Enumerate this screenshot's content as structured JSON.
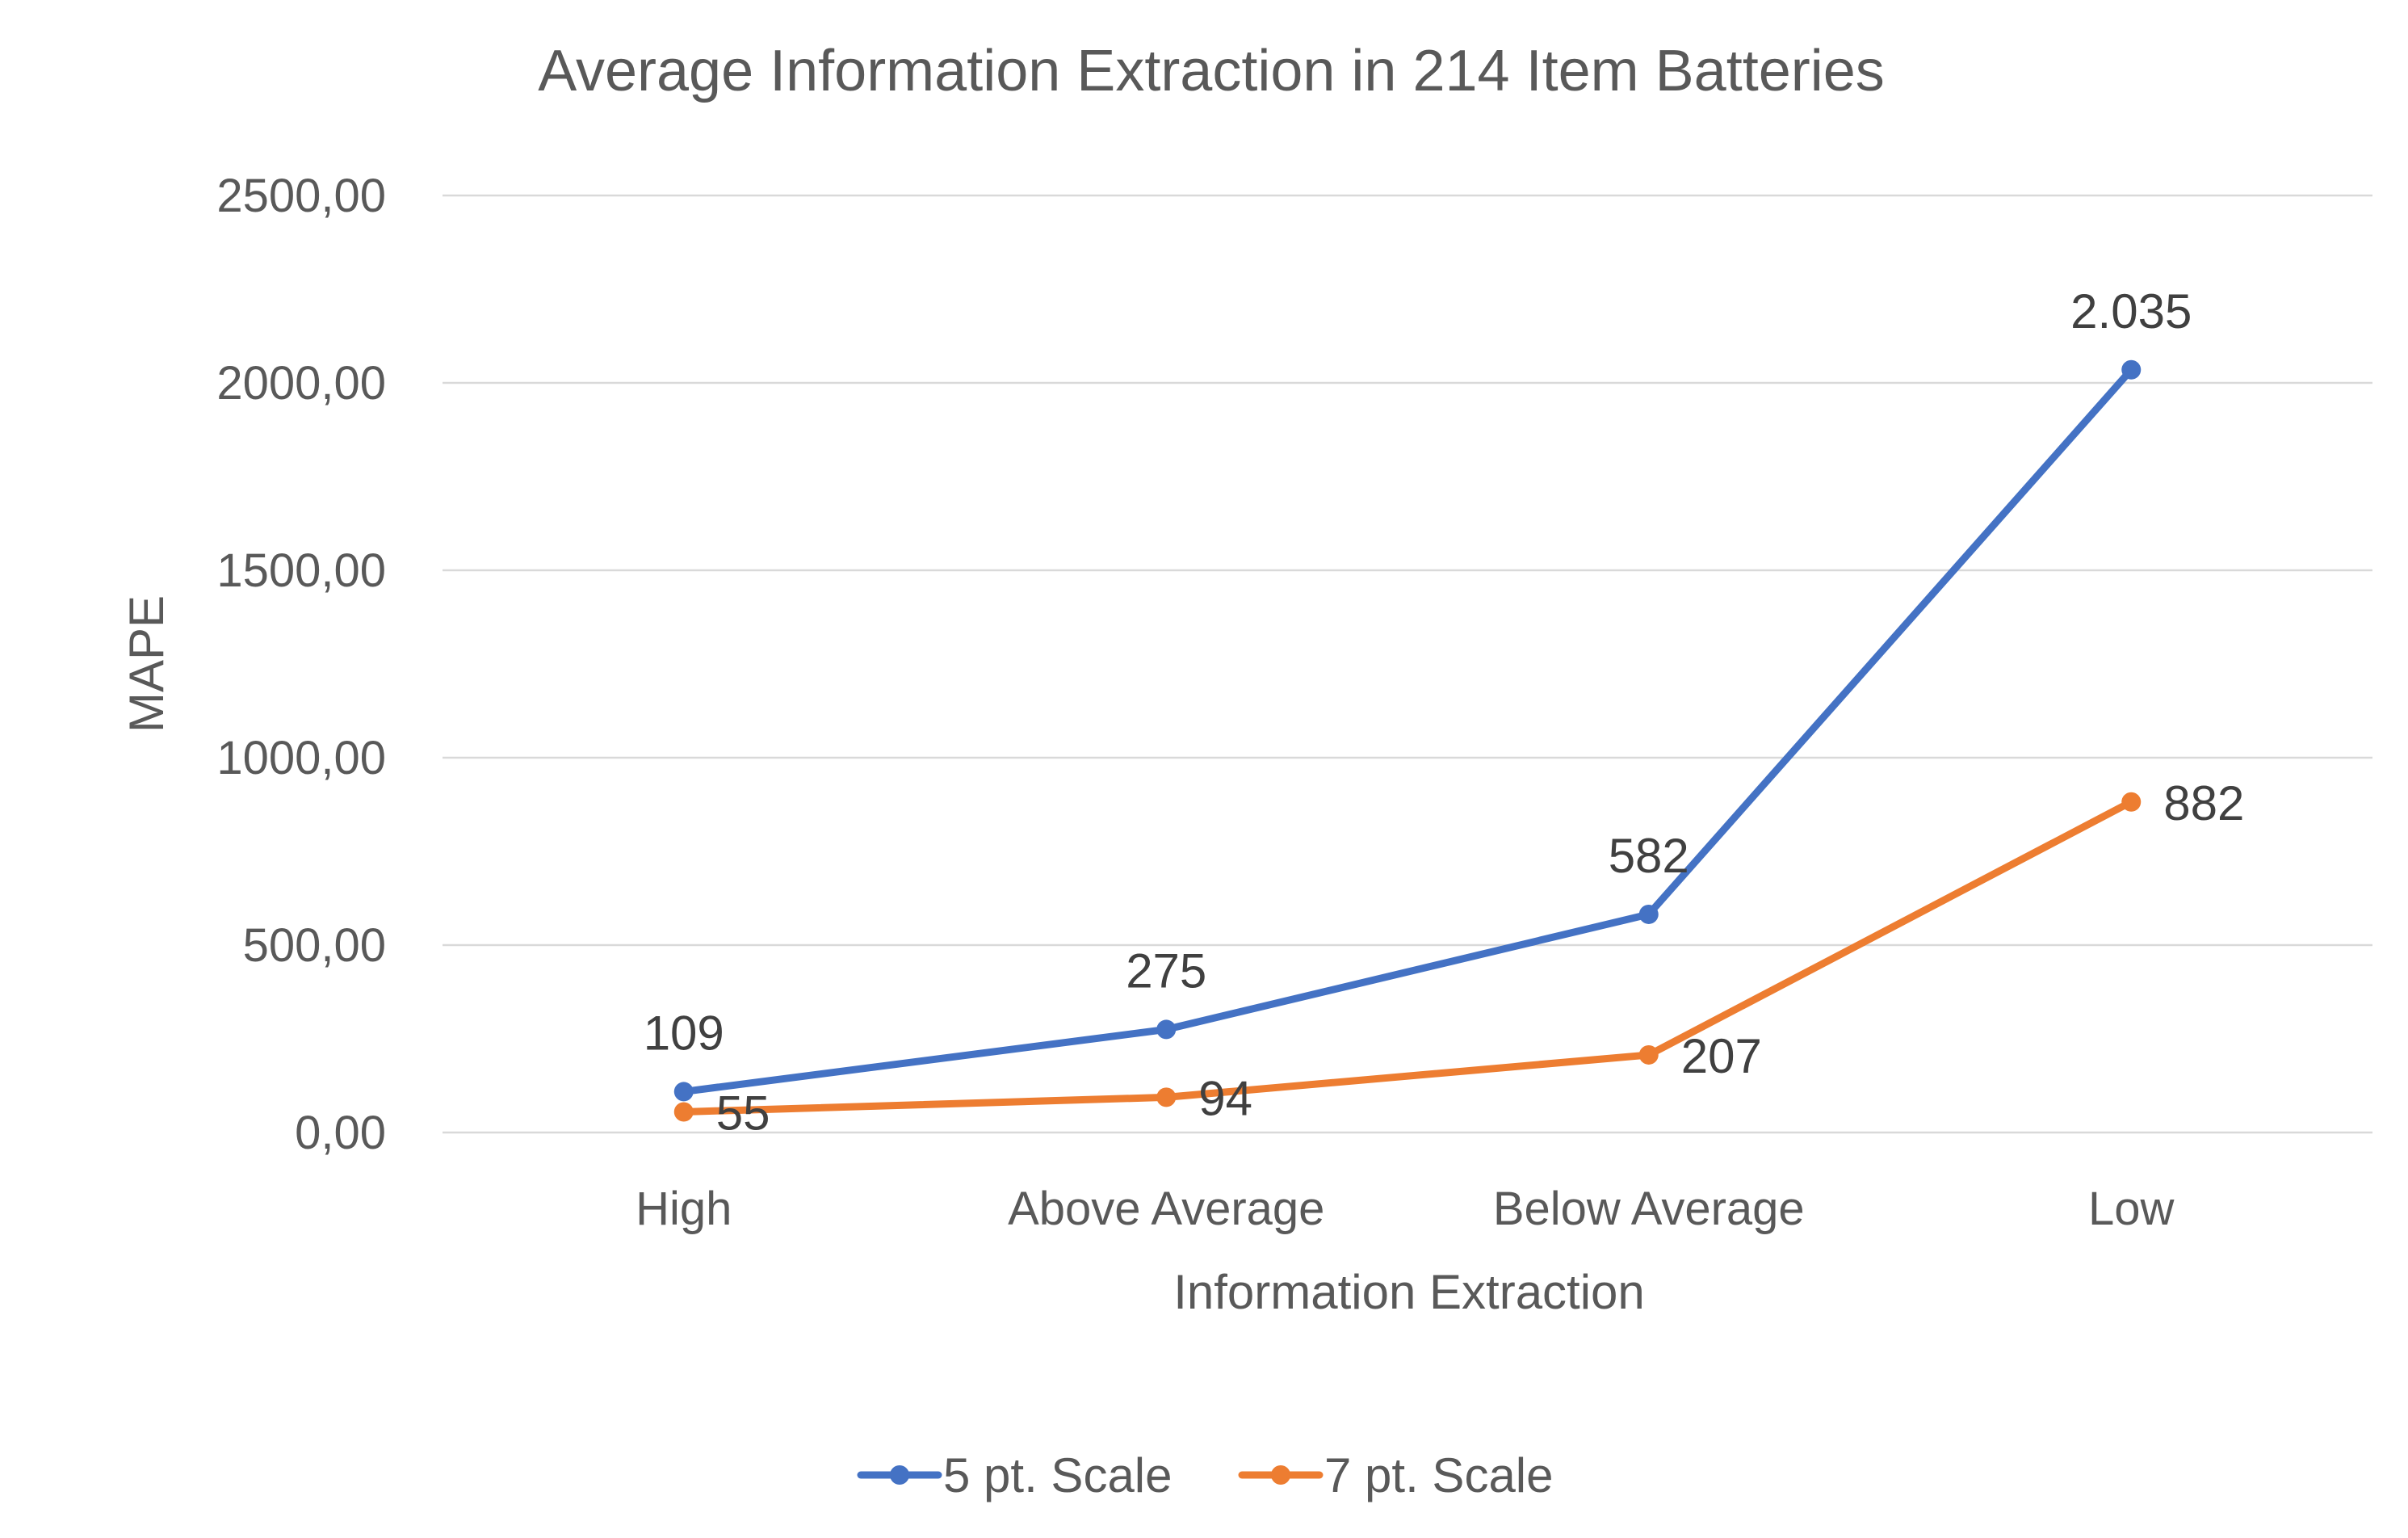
{
  "chart_data": {
    "type": "line",
    "title": "Average Information Extraction in 214 Item Batteries",
    "xlabel": "Information Extraction",
    "ylabel": "MAPE",
    "categories": [
      "High",
      "Above Average",
      "Below Average",
      "Low"
    ],
    "ylim": [
      0,
      2500
    ],
    "yticks": [
      {
        "value": 0,
        "label": "0,00"
      },
      {
        "value": 500,
        "label": "500,00"
      },
      {
        "value": 1000,
        "label": "1000,00"
      },
      {
        "value": 1500,
        "label": "1500,00"
      },
      {
        "value": 2000,
        "label": "2000,00"
      },
      {
        "value": 2500,
        "label": "2500,00"
      }
    ],
    "grid": true,
    "legend_position": "bottom",
    "series": [
      {
        "name": "5 pt. Scale",
        "color": "#4472C4",
        "values": [
          109,
          275,
          582,
          2035
        ],
        "labels": [
          "109",
          "275",
          "582",
          "2.035"
        ],
        "label_position": "above"
      },
      {
        "name": "7 pt. Scale",
        "color": "#ED7D31",
        "values": [
          55,
          94,
          207,
          882
        ],
        "labels": [
          "55",
          "94",
          "207",
          "882"
        ],
        "label_position": "right"
      }
    ]
  }
}
